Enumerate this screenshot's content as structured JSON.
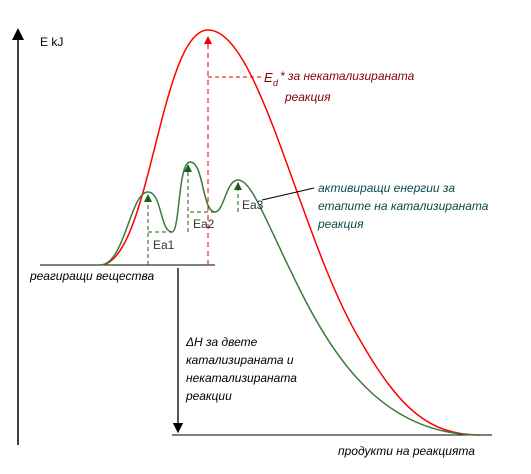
{
  "axis_label": "E kJ",
  "uncatalyzed_label": {
    "symbol": "E",
    "subscript": "d",
    "text": "* за некатализираната",
    "line2": "реакция"
  },
  "catalyzed_label": [
    "активиращи енергии за",
    "етапите на катализираната",
    "реакция"
  ],
  "steps": [
    "Ea1",
    "Ea2",
    "Ea3"
  ],
  "reactants": "реагиращи вещества",
  "delta_h": [
    "ΔH за двете",
    "катализираната и",
    "некатализираната",
    "реакции"
  ],
  "products": "продукти на реакцията"
}
